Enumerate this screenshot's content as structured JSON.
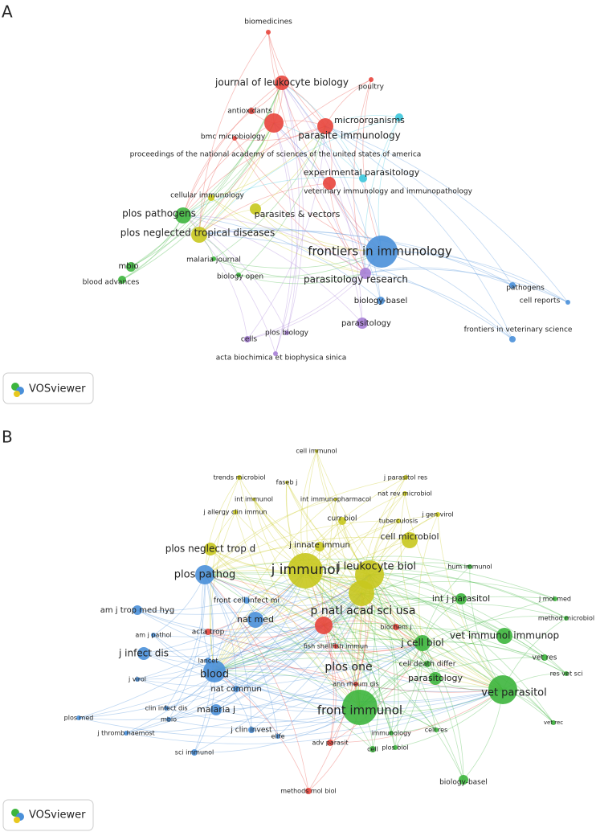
{
  "panels": [
    {
      "label": "A",
      "logo": "VOSviewer",
      "nodes": [
        "biomedicines",
        "journal of leukocyte biology",
        "poultry",
        "antioxidants",
        "microorganisms",
        "parasite immunology",
        "bmc microbiology",
        "proceedings of the national academy of sciences of the united states of america",
        "experimental parasitology",
        "veterinary immunology and immunopathology",
        "cellular immunology",
        "plos pathogens",
        "parasites & vectors",
        "plos neglected tropical diseases",
        "frontiers in immunology",
        "mbio",
        "malaria journal",
        "blood advances",
        "biology open",
        "parasitology research",
        "pathogens",
        "biology-basel",
        "cell reports",
        "parasitology",
        "cells",
        "plos biology",
        "frontiers in veterinary science",
        "acta biochimica et biophysica sinica"
      ]
    },
    {
      "label": "B",
      "logo": "VOSviewer",
      "nodes": [
        "cell immunol",
        "trends microbiol",
        "faseb j",
        "j parasitol res",
        "int immunol",
        "int immunopharmacol",
        "nat rev microbiol",
        "j allergy clin immun",
        "curr biol",
        "tuberculosis",
        "j gen virol",
        "cell microbiol",
        "plos neglect trop d",
        "j innate immun",
        "j immunol",
        "j leukocyte biol",
        "hum immunol",
        "plos pathog",
        "am j trop med hyg",
        "front cell infect mi",
        "int j parasitol",
        "j mol med",
        "nat med",
        "p natl acad sci usa",
        "method microbiol",
        "am j pathol",
        "acta trop",
        "vet immunol immunop",
        "biochem j",
        "j cell biol",
        "j infect dis",
        "vet res",
        "fish shellfish immun",
        "lancet",
        "res vet sci",
        "plos one",
        "blood",
        "cell death differ",
        "parasitology",
        "ann rheum dis",
        "j virol",
        "nat commun",
        "front immunol",
        "vet parasitol",
        "malaria j",
        "clin infect dis",
        "plos med",
        "mbio",
        "j thromb haemost",
        "j clin invest",
        "immunology",
        "cell res",
        "vet rec",
        "elife",
        "adv parasit",
        "cell",
        "plos biol",
        "sci immunol",
        "biology-basel",
        "methods mol biol"
      ]
    }
  ]
}
